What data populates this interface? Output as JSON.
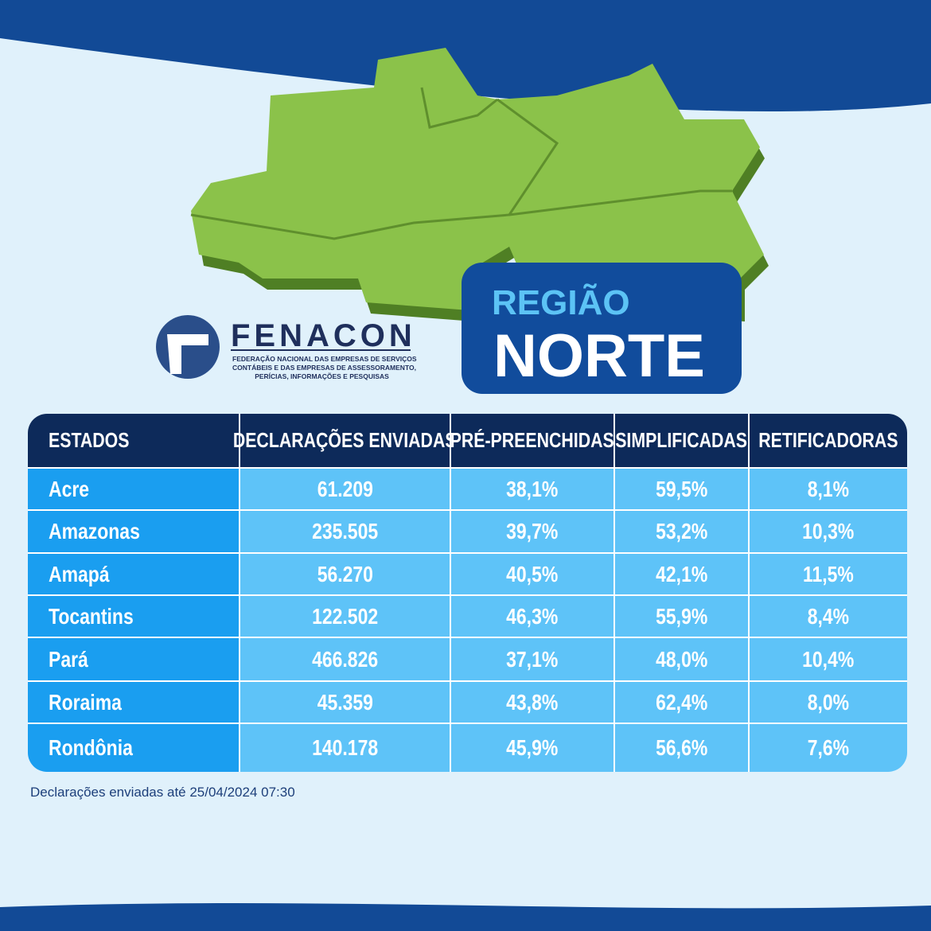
{
  "logo": {
    "name": "FENACON",
    "subtitle": [
      "FEDERAÇÃO NACIONAL DAS EMPRESAS DE SERVIÇOS",
      "CONTÁBEIS E DAS EMPRESAS DE ASSESSORAMENTO,",
      "PERÍCIAS, INFORMAÇÕES E PESQUISAS"
    ]
  },
  "region": {
    "label": "REGIÃO",
    "name": "NORTE"
  },
  "table": {
    "header": [
      "ESTADOS",
      "DECLARAÇÕES ENVIADAS",
      "PRÉ-PREENCHIDAS",
      "SIMPLIFICADAS",
      "RETIFICADORAS"
    ],
    "rows": [
      [
        "Acre",
        "61.209",
        "38,1%",
        "59,5%",
        "8,1%"
      ],
      [
        "Amazonas",
        "235.505",
        "39,7%",
        "53,2%",
        "10,3%"
      ],
      [
        "Amapá",
        "56.270",
        "40,5%",
        "42,1%",
        "11,5%"
      ],
      [
        "Tocantins",
        "122.502",
        "46,3%",
        "55,9%",
        "8,4%"
      ],
      [
        "Pará",
        "466.826",
        "37,1%",
        "48,0%",
        "10,4%"
      ],
      [
        "Roraima",
        "45.359",
        "43,8%",
        "62,4%",
        "8,0%"
      ],
      [
        "Rondônia",
        "140.178",
        "45,9%",
        "56,6%",
        "7,6%"
      ]
    ]
  },
  "footnote": "Declarações enviadas até 25/04/2024 07:30"
}
